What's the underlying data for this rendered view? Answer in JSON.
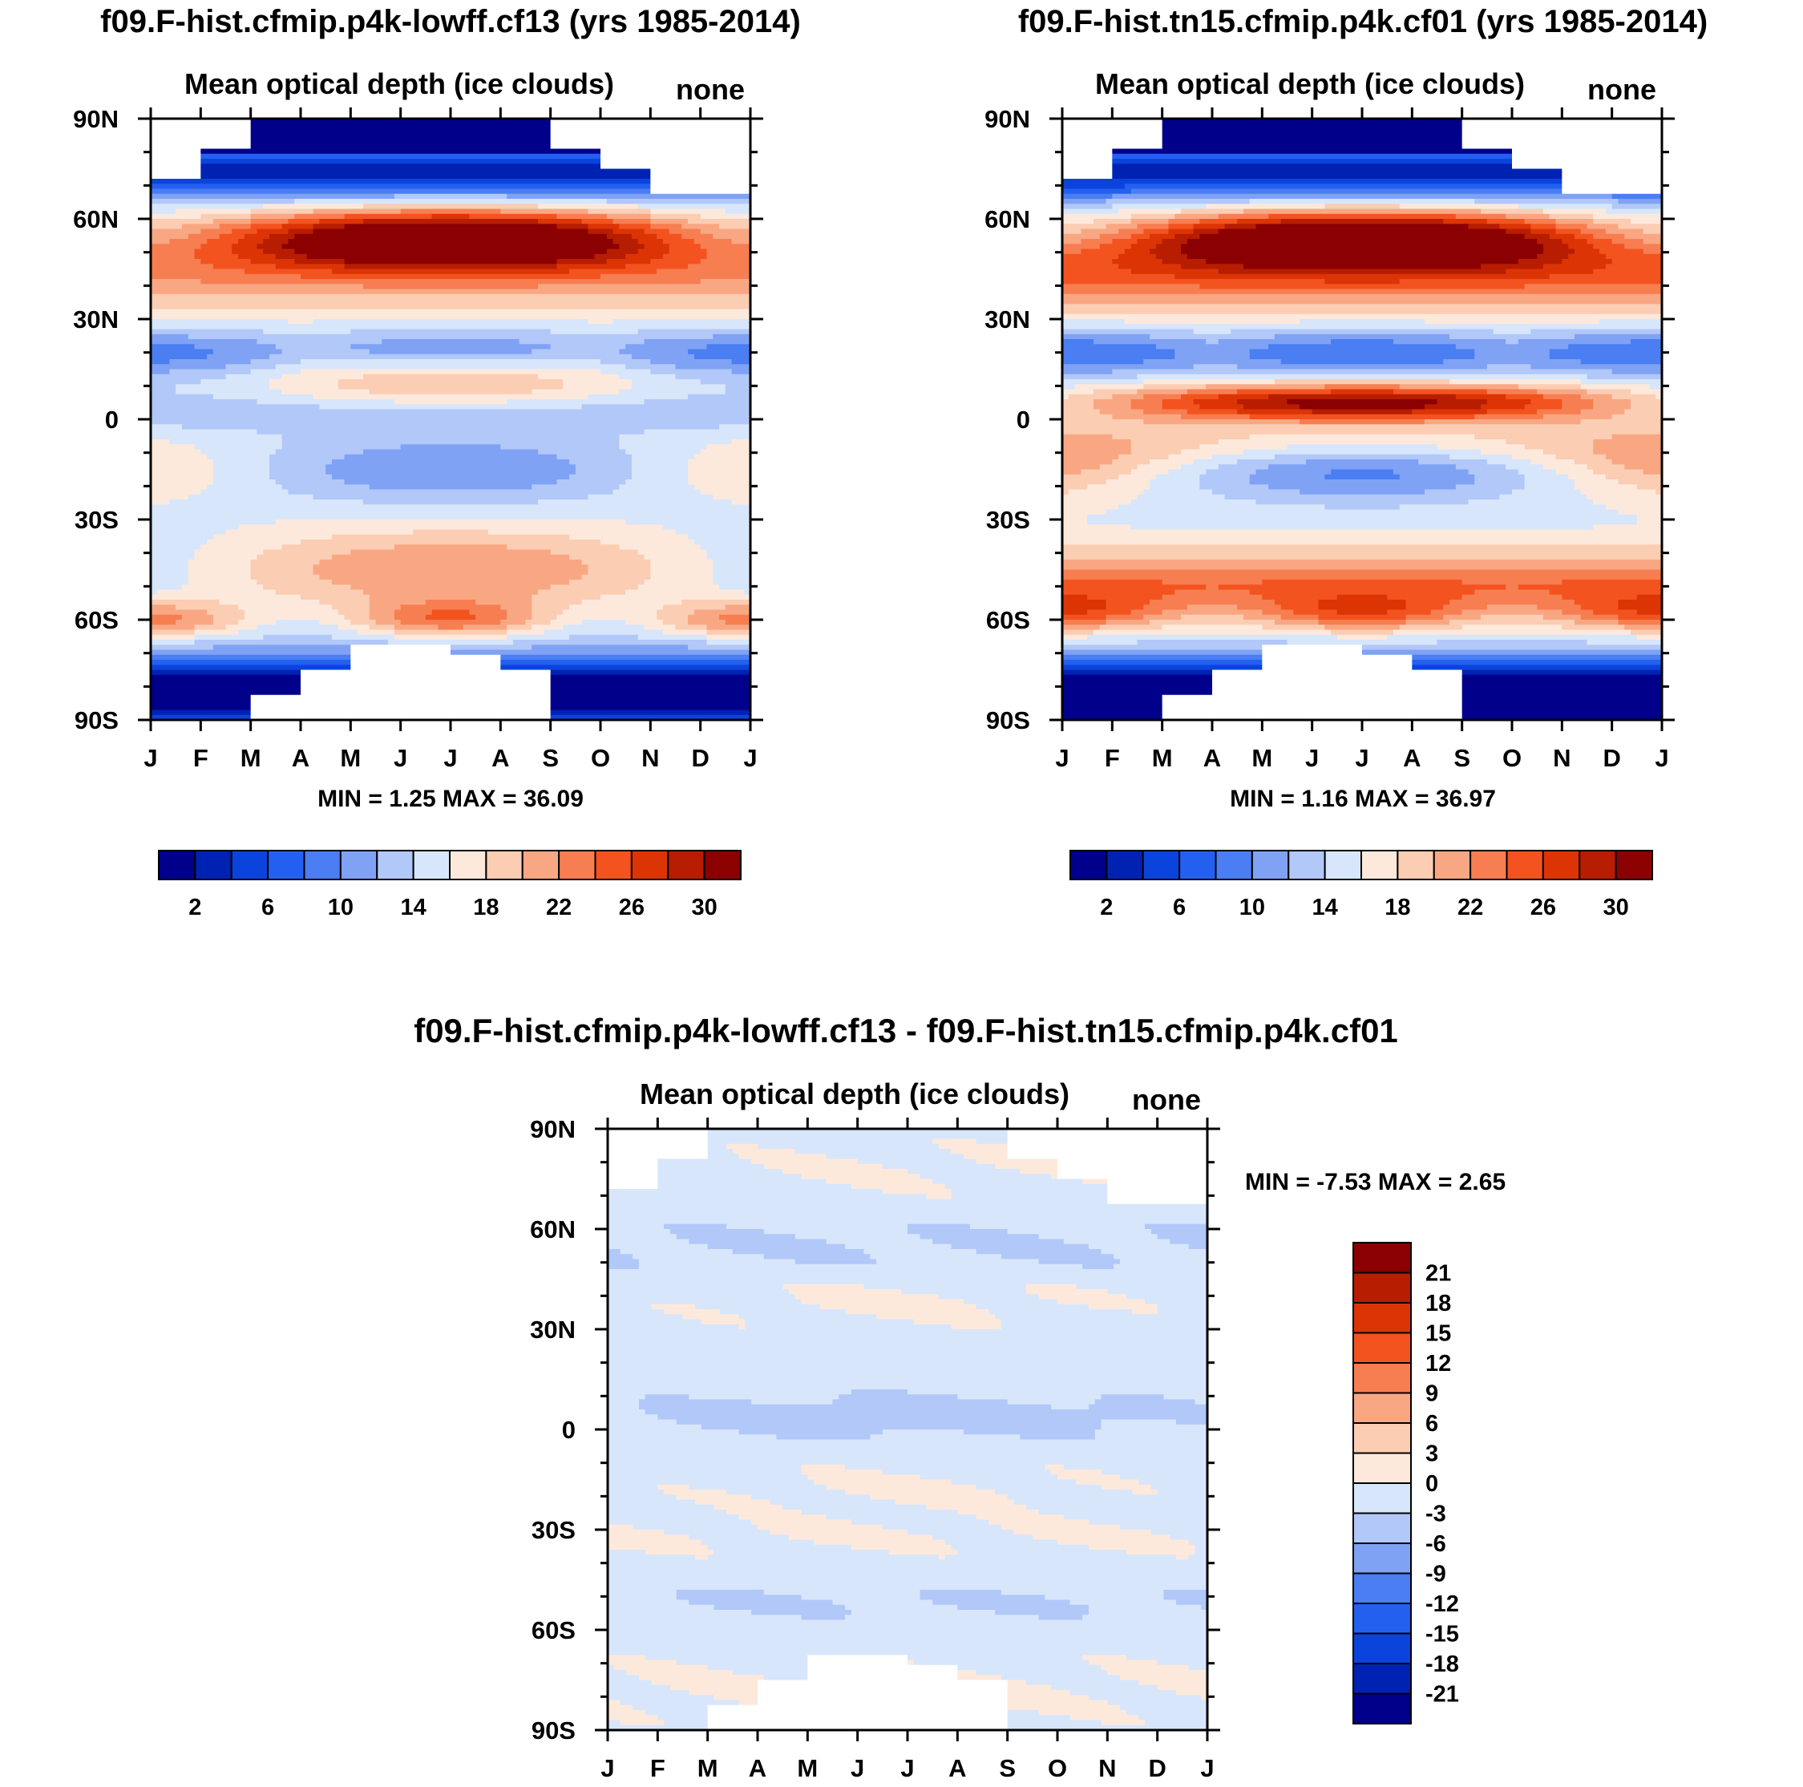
{
  "chart_data": [
    {
      "type": "heatmap",
      "id": "p1",
      "title": "f09.F-hist.cfmip.p4k-lowff.cf13 (yrs 1985-2014)",
      "subtitle": "Mean optical depth (ice clouds)",
      "units_label": "none",
      "x_tick_labels": [
        "J",
        "F",
        "M",
        "A",
        "M",
        "J",
        "J",
        "A",
        "S",
        "O",
        "N",
        "D",
        "J"
      ],
      "y_tick_labels": [
        "90N",
        "60N",
        "30N",
        "0",
        "30S",
        "60S",
        "90S"
      ],
      "stats": "MIN =   1.25 MAX =  36.09",
      "colorbar_labels": [
        "2",
        "6",
        "10",
        "14",
        "18",
        "22",
        "26",
        "30"
      ],
      "colorbar_levels": [
        2,
        4,
        6,
        8,
        10,
        12,
        14,
        16,
        18,
        20,
        22,
        24,
        26,
        28,
        30
      ],
      "zlim": [
        1.25,
        36.09
      ],
      "variant": "a"
    },
    {
      "type": "heatmap",
      "id": "p2",
      "title": "f09.F-hist.tn15.cfmip.p4k.cf01 (yrs 1985-2014)",
      "subtitle": "Mean optical depth (ice clouds)",
      "units_label": "none",
      "x_tick_labels": [
        "J",
        "F",
        "M",
        "A",
        "M",
        "J",
        "J",
        "A",
        "S",
        "O",
        "N",
        "D",
        "J"
      ],
      "y_tick_labels": [
        "90N",
        "60N",
        "30N",
        "0",
        "30S",
        "60S",
        "90S"
      ],
      "stats": "MIN =   1.16 MAX =  36.97",
      "colorbar_labels": [
        "2",
        "6",
        "10",
        "14",
        "18",
        "22",
        "26",
        "30"
      ],
      "colorbar_levels": [
        2,
        4,
        6,
        8,
        10,
        12,
        14,
        16,
        18,
        20,
        22,
        24,
        26,
        28,
        30
      ],
      "zlim": [
        1.16,
        36.97
      ],
      "variant": "b"
    },
    {
      "type": "heatmap",
      "id": "p3",
      "title": "f09.F-hist.cfmip.p4k-lowff.cf13 - f09.F-hist.tn15.cfmip.p4k.cf01",
      "subtitle": "Mean optical depth (ice clouds)",
      "units_label": "none",
      "x_tick_labels": [
        "J",
        "F",
        "M",
        "A",
        "M",
        "J",
        "J",
        "A",
        "S",
        "O",
        "N",
        "D",
        "J"
      ],
      "y_tick_labels": [
        "90N",
        "60N",
        "30N",
        "0",
        "30S",
        "60S",
        "90S"
      ],
      "stats": "MIN =  -7.53 MAX =   2.65",
      "colorbar_labels": [
        "21",
        "18",
        "15",
        "12",
        "9",
        "6",
        "3",
        "0",
        "-3",
        "-6",
        "-9",
        "-12",
        "-15",
        "-18",
        "-21"
      ],
      "colorbar_levels": [
        -21,
        -18,
        -15,
        -12,
        -9,
        -6,
        -3,
        0,
        3,
        6,
        9,
        12,
        15,
        18,
        21
      ],
      "zlim": [
        -7.53,
        2.65
      ],
      "variant": "diff"
    }
  ],
  "palette": [
    "#00008b",
    "#0022b3",
    "#0b44dd",
    "#2460f0",
    "#4a7ef2",
    "#7fa2f5",
    "#b1c8f8",
    "#d7e6fb",
    "#fde9dc",
    "#fbcdb3",
    "#f9a783",
    "#f77e51",
    "#f3531f",
    "#dc3405",
    "#b71d01",
    "#8b0000"
  ]
}
